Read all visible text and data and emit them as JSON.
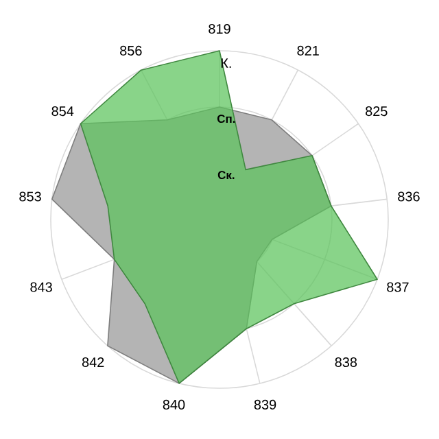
{
  "chart_data": {
    "type": "radar",
    "categories": [
      "819",
      "821",
      "825",
      "836",
      "837",
      "838",
      "839",
      "840",
      "842",
      "843",
      "853",
      "854",
      "856"
    ],
    "series": [
      {
        "color": "#b4b4b4",
        "values": [
          2,
          2,
          2,
          2,
          1,
          1,
          2,
          3,
          3,
          2,
          3,
          3,
          2
        ]
      },
      {
        "color": "#5cc35c",
        "values": [
          3,
          1,
          2,
          2,
          3,
          2,
          2,
          3,
          2,
          2,
          2,
          3,
          3
        ]
      }
    ],
    "ylim": [
      0,
      3
    ],
    "yticks": [
      {
        "value": 1,
        "label": "Ск."
      },
      {
        "value": 2,
        "label": "Сп."
      },
      {
        "value": 3,
        "label": "К."
      }
    ],
    "grid": true
  }
}
